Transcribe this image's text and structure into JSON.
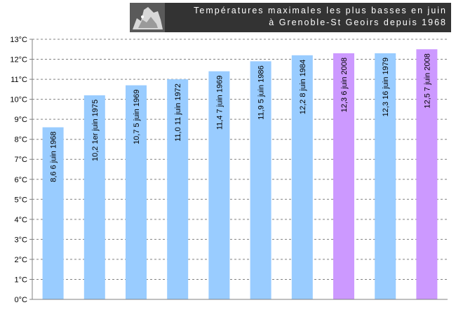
{
  "chart_data": {
    "type": "bar",
    "title_line1": "Températures maximales les plus basses en juin",
    "title_line2": "à Grenoble-St Geoirs depuis 1968",
    "categories": [
      "6 juin 1968",
      "1er juin 1975",
      "5 juin 1969",
      "11 juin 1972",
      "7 juin 1969",
      "5 juin 1986",
      "8 juin 1984",
      "6 juin 2008",
      "16 juin 1979",
      "7 juin 2008"
    ],
    "values": [
      8.6,
      10.2,
      10.7,
      11.0,
      11.4,
      11.9,
      12.2,
      12.3,
      12.3,
      12.5
    ],
    "value_labels": [
      "8,6",
      "10,2",
      "10,7",
      "11,0",
      "11,4",
      "11,9",
      "12,2",
      "12,3",
      "12,3",
      "12,5"
    ],
    "highlight": [
      false,
      false,
      false,
      false,
      false,
      false,
      false,
      true,
      false,
      true
    ],
    "ylim": [
      0,
      13
    ],
    "y_ticks": [
      "0°C",
      "1°C",
      "2°C",
      "3°C",
      "4°C",
      "5°C",
      "6°C",
      "7°C",
      "8°C",
      "9°C",
      "10°C",
      "11°C",
      "12°C",
      "13°C"
    ],
    "colors": {
      "bar": "#99ccff",
      "highlight": "#cc99ff",
      "grid": "#808080",
      "axis": "#808080"
    },
    "grid": true,
    "legend": "none",
    "logo": "mountain-silhouette-icon"
  }
}
